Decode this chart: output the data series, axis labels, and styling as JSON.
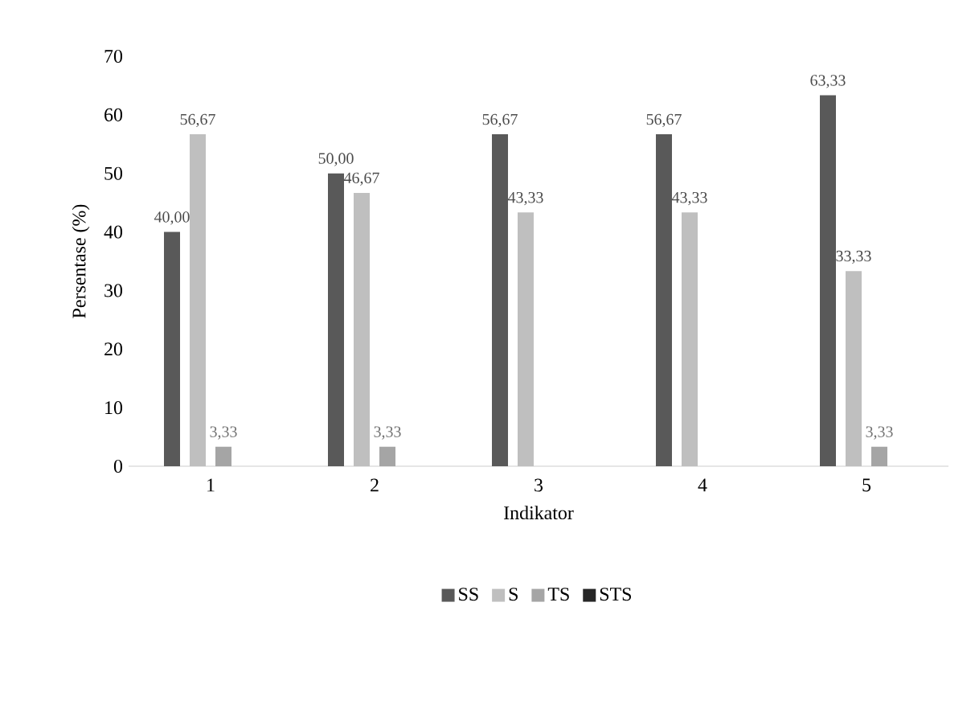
{
  "chart_data": {
    "type": "bar",
    "xlabel": "Indikator",
    "ylabel": "Persentase (%)",
    "categories": [
      "1",
      "2",
      "3",
      "4",
      "5"
    ],
    "series": [
      {
        "name": "SS",
        "color": "#595959",
        "values": [
          40,
          50,
          56.67,
          56.67,
          63.33
        ],
        "value_labels": [
          "40,00",
          "50,00",
          "56,67",
          "56,67",
          "63,33"
        ]
      },
      {
        "name": "S",
        "color": "#bfbfbf",
        "values": [
          56.67,
          46.67,
          43.33,
          43.33,
          33.33
        ],
        "value_labels": [
          "56,67",
          "46,67",
          "43,33",
          "43,33",
          "33,33"
        ]
      },
      {
        "name": "TS",
        "color": "#a5a5a5",
        "values": [
          3.33,
          3.33,
          0,
          0,
          3.33
        ],
        "value_labels": [
          "3,33",
          "3,33",
          null,
          null,
          "3,33"
        ]
      },
      {
        "name": "STS",
        "color": "#262626",
        "values": [
          0,
          0,
          0,
          0,
          0
        ],
        "value_labels": [
          null,
          null,
          null,
          null,
          null
        ]
      }
    ],
    "ylim": [
      0,
      70
    ],
    "yticks": [
      0,
      10,
      20,
      30,
      40,
      50,
      60,
      70
    ],
    "legend": "bottom"
  }
}
